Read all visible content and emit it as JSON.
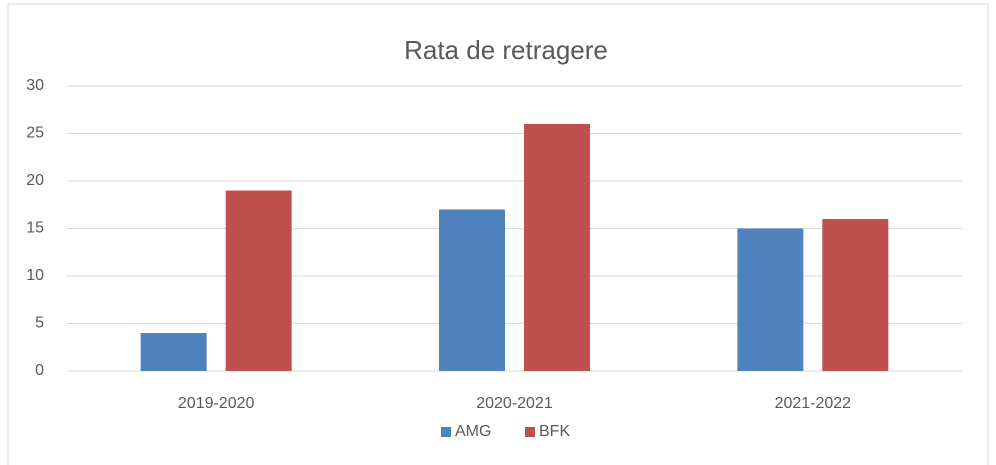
{
  "chart_data": {
    "type": "bar",
    "title": "Rata de retragere",
    "categories": [
      "2019-2020",
      "2020-2021",
      "2021-2022"
    ],
    "series": [
      {
        "name": "AMG",
        "color": "#4f81bd",
        "values": [
          4,
          17,
          15
        ]
      },
      {
        "name": "BFK",
        "color": "#c0504d",
        "values": [
          19,
          26,
          16
        ]
      }
    ],
    "ylim": [
      0,
      30
    ],
    "yticks": [
      0,
      5,
      10,
      15,
      20,
      25,
      30
    ],
    "grid": true,
    "legend": "bottom"
  }
}
